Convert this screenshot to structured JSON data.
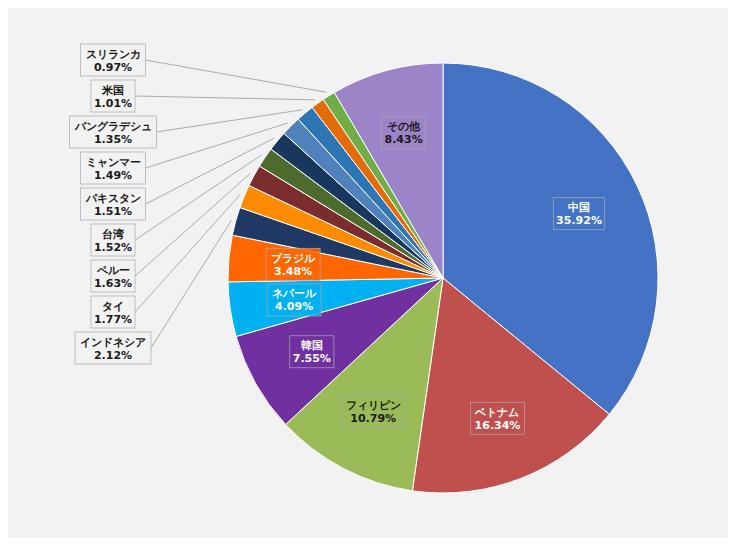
{
  "chart_data": {
    "type": "pie",
    "categories": [
      "中国",
      "ベトナム",
      "フィリピン",
      "韓国",
      "ネパール",
      "ブラジル",
      "インドネシア",
      "タイ",
      "ペルー",
      "台湾",
      "パキスタン",
      "ミャンマー",
      "バングラデシュ",
      "米国",
      "スリランカ",
      "その他"
    ],
    "values": [
      35.92,
      16.34,
      10.79,
      7.55,
      4.09,
      3.48,
      2.12,
      1.77,
      1.63,
      1.52,
      1.51,
      1.49,
      1.35,
      1.01,
      0.97,
      8.43
    ],
    "value_labels": [
      "35.92%",
      "16.34%",
      "10.79%",
      "7.55%",
      "4.09%",
      "3.48%",
      "2.12%",
      "1.77%",
      "1.63%",
      "1.52%",
      "1.51%",
      "1.49%",
      "1.35%",
      "1.01%",
      "0.97%",
      "8.43%"
    ],
    "colors": [
      "#4472C4",
      "#C0504D",
      "#9BBB59",
      "#7030A0",
      "#00B0F0",
      "#FF6600",
      "#1F3864",
      "#FF8C00",
      "#7B2C2C",
      "#4E6B2E",
      "#17375E",
      "#4F81BD",
      "#2E75B6",
      "#E36C09",
      "#70AD47",
      "#9B84C8"
    ],
    "data_labels": true
  }
}
